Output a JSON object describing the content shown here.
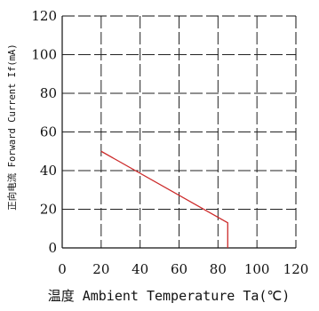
{
  "chart_data": {
    "type": "line",
    "xlabel": "温度 Ambient Temperature Ta(℃)",
    "ylabel": "正向电流 Forward Current If(mA)",
    "xlim": [
      0,
      120
    ],
    "ylim": [
      0,
      120
    ],
    "x_ticks": [
      "0",
      "20",
      "40",
      "60",
      "80",
      "100",
      "120"
    ],
    "y_ticks": [
      "0",
      "20",
      "40",
      "60",
      "80",
      "100",
      "120"
    ],
    "grid": true,
    "grid_style": "dashed",
    "series": [
      {
        "color": "#cc2a2a",
        "x": [
          20,
          85,
          85,
          85
        ],
        "y": [
          50,
          13,
          13,
          0
        ]
      }
    ],
    "vertical_end": {
      "x": 85,
      "y": [
        13,
        0
      ],
      "color": "#cc2a2a"
    }
  }
}
